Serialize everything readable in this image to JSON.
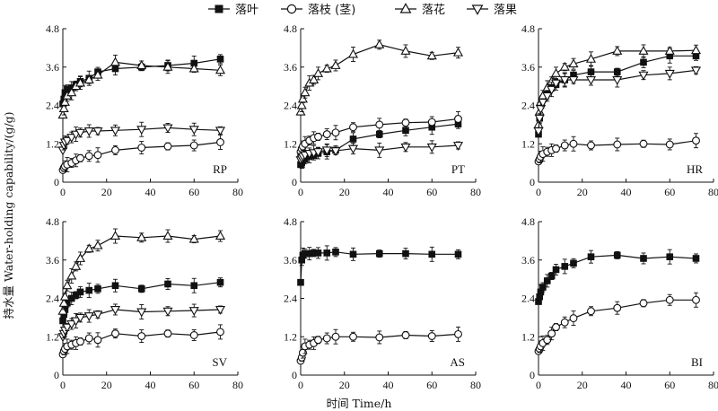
{
  "legend": [
    {
      "name": "落叶",
      "marker": "square-filled"
    },
    {
      "name": "落枝 (茎)",
      "marker": "circle-open"
    },
    {
      "name": "落花",
      "marker": "triangle-up-open"
    },
    {
      "name": "落果",
      "marker": "triangle-down-open"
    }
  ],
  "xlabel": "时间 Time/h",
  "ylabel": "持水量 Water-holding capability/(g/g)",
  "colors": {
    "line": "#111111",
    "fill_open": "#ffffff",
    "fill_solid": "#111111"
  },
  "chart_data": [
    {
      "type": "line",
      "panel": "RP",
      "xlim": [
        0,
        80
      ],
      "ylim": [
        0,
        4.8
      ],
      "xticks": [
        0,
        20,
        40,
        60,
        80
      ],
      "yticks": [
        0,
        1.2,
        2.4,
        3.6,
        4.8
      ],
      "x": [
        0,
        0.5,
        1,
        2,
        4,
        6,
        8,
        12,
        16,
        24,
        36,
        48,
        60,
        72
      ],
      "series": [
        {
          "name": "落叶",
          "marker": "square-filled",
          "values": [
            2.45,
            2.6,
            2.8,
            2.9,
            2.95,
            3.05,
            3.15,
            3.25,
            3.45,
            3.55,
            3.6,
            3.65,
            3.72,
            3.85
          ]
        },
        {
          "name": "落枝 (茎)",
          "marker": "circle-open",
          "values": [
            0.38,
            0.45,
            0.5,
            0.55,
            0.6,
            0.68,
            0.75,
            0.82,
            0.85,
            1.0,
            1.08,
            1.12,
            1.15,
            1.25
          ]
        },
        {
          "name": "落花",
          "marker": "triangle-up-open",
          "values": [
            2.1,
            2.3,
            2.5,
            2.7,
            2.8,
            3.0,
            3.1,
            3.2,
            3.35,
            3.75,
            3.65,
            3.6,
            3.55,
            3.5
          ]
        },
        {
          "name": "落果",
          "marker": "triangle-down-open",
          "values": [
            1.0,
            1.15,
            1.25,
            1.3,
            1.4,
            1.5,
            1.55,
            1.6,
            1.6,
            1.62,
            1.65,
            1.7,
            1.65,
            1.62
          ]
        }
      ]
    },
    {
      "type": "line",
      "panel": "PT",
      "xlim": [
        0,
        80
      ],
      "ylim": [
        0,
        4.8
      ],
      "xticks": [
        0,
        20,
        40,
        60,
        80
      ],
      "yticks": [
        0,
        1.2,
        2.4,
        3.6,
        4.8
      ],
      "x": [
        0,
        0.5,
        1,
        2,
        4,
        6,
        8,
        12,
        16,
        24,
        36,
        48,
        60,
        72
      ],
      "series": [
        {
          "name": "落叶",
          "marker": "square-filled",
          "values": [
            0.55,
            0.6,
            0.68,
            0.72,
            0.8,
            0.85,
            0.9,
            0.95,
            1.0,
            1.35,
            1.5,
            1.62,
            1.72,
            1.82
          ]
        },
        {
          "name": "落枝 (茎)",
          "marker": "circle-open",
          "values": [
            0.95,
            1.05,
            1.12,
            1.2,
            1.3,
            1.38,
            1.42,
            1.5,
            1.55,
            1.72,
            1.8,
            1.86,
            1.88,
            1.98
          ]
        },
        {
          "name": "落花",
          "marker": "triangle-up-open",
          "values": [
            2.2,
            2.4,
            2.6,
            2.8,
            3.1,
            3.2,
            3.4,
            3.55,
            3.65,
            4.0,
            4.3,
            4.1,
            3.95,
            4.05
          ]
        },
        {
          "name": "落果",
          "marker": "triangle-down-open",
          "values": [
            0.7,
            0.75,
            0.8,
            0.85,
            0.9,
            0.92,
            0.95,
            1.0,
            0.98,
            1.05,
            1.0,
            1.1,
            1.1,
            1.15
          ]
        }
      ]
    },
    {
      "type": "line",
      "panel": "HR",
      "xlim": [
        0,
        80
      ],
      "ylim": [
        0,
        4.8
      ],
      "xticks": [
        0,
        20,
        40,
        60,
        80
      ],
      "yticks": [
        0,
        1.2,
        2.4,
        3.6,
        4.8
      ],
      "x": [
        0,
        0.5,
        1,
        2,
        4,
        6,
        8,
        12,
        16,
        24,
        36,
        48,
        60,
        72
      ],
      "series": [
        {
          "name": "落叶",
          "marker": "square-filled",
          "values": [
            1.5,
            2.0,
            2.4,
            2.6,
            2.8,
            2.95,
            3.05,
            3.2,
            3.35,
            3.45,
            3.45,
            3.75,
            3.95,
            3.95
          ]
        },
        {
          "name": "落枝 (茎)",
          "marker": "circle-open",
          "values": [
            0.65,
            0.72,
            0.8,
            0.88,
            0.95,
            1.0,
            1.05,
            1.15,
            1.2,
            1.15,
            1.18,
            1.2,
            1.18,
            1.3
          ]
        },
        {
          "name": "落花",
          "marker": "triangle-up-open",
          "values": [
            1.8,
            2.2,
            2.5,
            2.7,
            2.95,
            3.15,
            3.4,
            3.6,
            3.7,
            3.85,
            4.1,
            4.1,
            4.1,
            4.12
          ]
        },
        {
          "name": "落果",
          "marker": "triangle-down-open",
          "values": [
            1.6,
            2.0,
            2.3,
            2.5,
            2.7,
            2.9,
            3.1,
            3.2,
            3.2,
            3.2,
            3.2,
            3.35,
            3.4,
            3.5
          ]
        }
      ]
    },
    {
      "type": "line",
      "panel": "SV",
      "xlim": [
        0,
        80
      ],
      "ylim": [
        0,
        4.8
      ],
      "xticks": [
        0,
        20,
        40,
        60,
        80
      ],
      "yticks": [
        0,
        1.2,
        2.4,
        3.6,
        4.8
      ],
      "x": [
        0,
        0.5,
        1,
        2,
        4,
        6,
        8,
        12,
        16,
        24,
        36,
        48,
        60,
        72
      ],
      "series": [
        {
          "name": "落叶",
          "marker": "square-filled",
          "values": [
            1.7,
            1.9,
            2.05,
            2.25,
            2.4,
            2.5,
            2.6,
            2.65,
            2.7,
            2.8,
            2.7,
            2.85,
            2.8,
            2.9
          ]
        },
        {
          "name": "落枝 (茎)",
          "marker": "circle-open",
          "values": [
            0.65,
            0.75,
            0.82,
            0.9,
            0.95,
            1.0,
            1.05,
            1.15,
            1.1,
            1.3,
            1.22,
            1.3,
            1.25,
            1.35
          ]
        },
        {
          "name": "落花",
          "marker": "triangle-up-open",
          "values": [
            2.0,
            2.25,
            2.45,
            2.8,
            3.1,
            3.4,
            3.65,
            3.95,
            4.05,
            4.35,
            4.3,
            4.35,
            4.25,
            4.35
          ]
        },
        {
          "name": "落果",
          "marker": "triangle-down-open",
          "values": [
            1.2,
            1.3,
            1.4,
            1.5,
            1.6,
            1.7,
            1.8,
            1.85,
            1.9,
            2.05,
            1.98,
            2.0,
            2.02,
            2.05
          ]
        }
      ]
    },
    {
      "type": "line",
      "panel": "AS",
      "xlim": [
        0,
        80
      ],
      "ylim": [
        0,
        4.8
      ],
      "xticks": [
        0,
        20,
        40,
        60,
        80
      ],
      "yticks": [
        0,
        1.2,
        2.4,
        3.6,
        4.8
      ],
      "x": [
        0,
        0.5,
        1,
        2,
        4,
        6,
        8,
        12,
        16,
        24,
        36,
        48,
        60,
        72
      ],
      "series": [
        {
          "name": "落叶",
          "marker": "square-filled",
          "values": [
            2.9,
            3.6,
            3.75,
            3.8,
            3.8,
            3.82,
            3.82,
            3.82,
            3.85,
            3.78,
            3.8,
            3.8,
            3.78,
            3.78
          ]
        },
        {
          "name": "落枝 (茎)",
          "marker": "circle-open",
          "values": [
            0.45,
            0.55,
            0.7,
            0.9,
            0.95,
            1.0,
            1.1,
            1.15,
            1.2,
            1.2,
            1.18,
            1.25,
            1.22,
            1.28
          ]
        }
      ]
    },
    {
      "type": "line",
      "panel": "BI",
      "xlim": [
        0,
        80
      ],
      "ylim": [
        0,
        4.8
      ],
      "xticks": [
        0,
        20,
        40,
        60,
        80
      ],
      "yticks": [
        0,
        1.2,
        2.4,
        3.6,
        4.8
      ],
      "x": [
        0,
        0.5,
        1,
        2,
        4,
        6,
        8,
        12,
        16,
        24,
        36,
        48,
        60,
        72
      ],
      "series": [
        {
          "name": "落叶",
          "marker": "square-filled",
          "values": [
            2.3,
            2.45,
            2.6,
            2.75,
            2.95,
            3.1,
            3.3,
            3.4,
            3.5,
            3.7,
            3.75,
            3.65,
            3.7,
            3.65
          ]
        },
        {
          "name": "落枝 (茎)",
          "marker": "circle-open",
          "values": [
            0.75,
            0.82,
            0.9,
            1.0,
            1.1,
            1.3,
            1.5,
            1.65,
            1.78,
            2.0,
            2.1,
            2.25,
            2.35,
            2.35
          ]
        }
      ]
    }
  ]
}
